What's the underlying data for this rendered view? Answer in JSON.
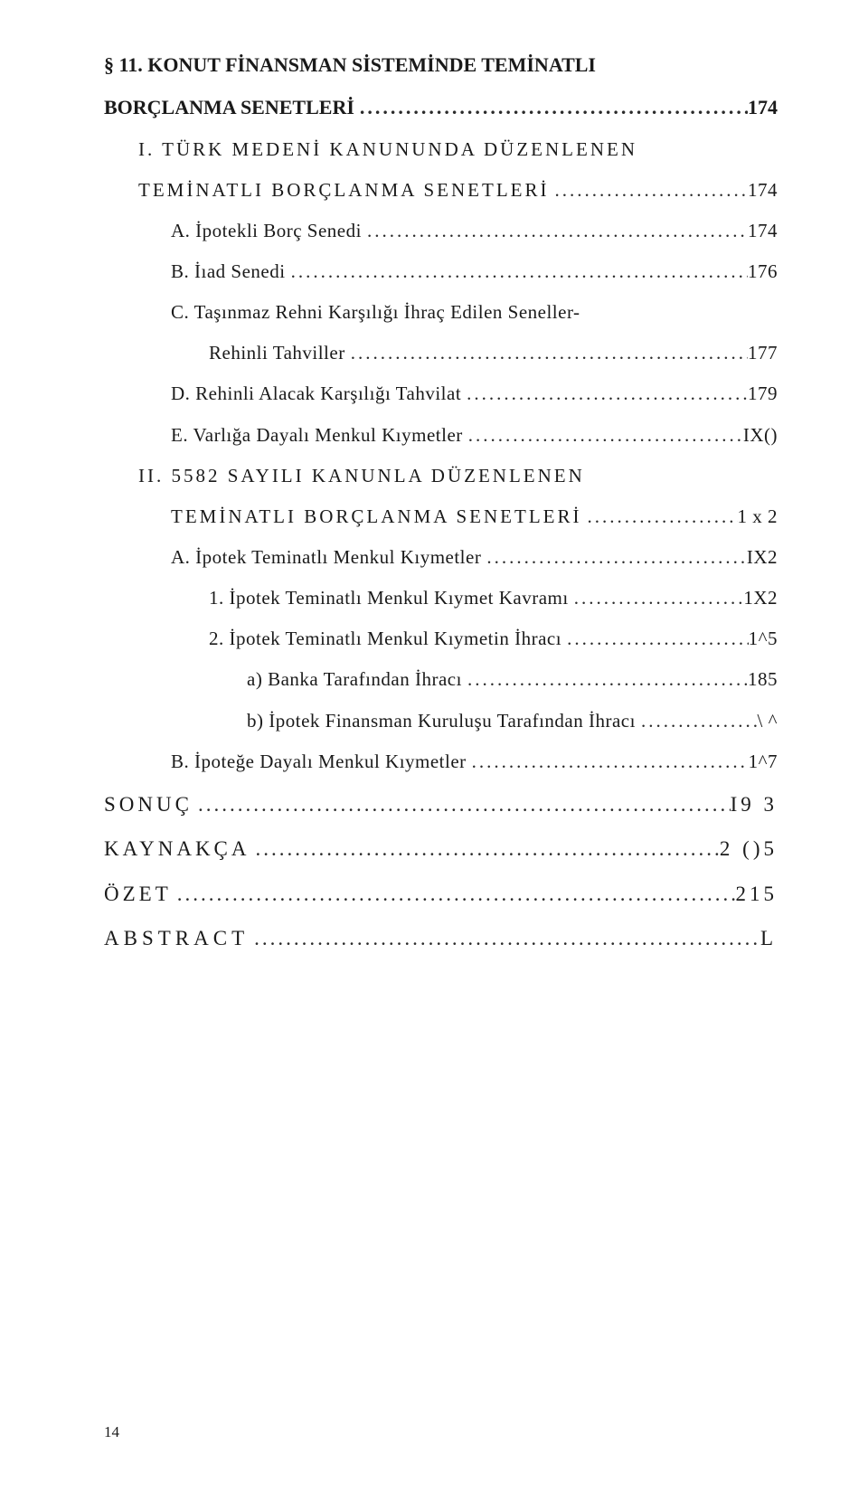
{
  "dots": "...........................................................................................................................",
  "entries": [
    {
      "cls": "row sec bold l0",
      "label": "§ 11. KONUT FİNANSMAN SİSTEMİNDE TEMİNATLI",
      "page": ""
    },
    {
      "cls": "row sec bold l0",
      "label": "BORÇLANMA SENETLERİ",
      "page": "174",
      "dots": true
    },
    {
      "cls": "row sub l1",
      "label": "I. TÜRK MEDENİ KANUNUNDA DÜZENLENEN",
      "page": "",
      "labelCls": "ls3"
    },
    {
      "cls": "row sub l2",
      "label": "TEMİNATLI BORÇLANMA SENETLERİ",
      "page": "174",
      "dots": true,
      "labelCls": "ls3"
    },
    {
      "cls": "row item l3",
      "label": "A. İpotekli Borç Senedi",
      "page": "174",
      "dots": true
    },
    {
      "cls": "row item l3",
      "label": "B. İıad Senedi",
      "page": "176",
      "dots": true
    },
    {
      "cls": "row item l3",
      "label": "C. Taşınmaz Rehni Karşılığı İhraç Edilen Seneller-",
      "page": ""
    },
    {
      "cls": "row item l4",
      "label": "Rehinli Tahviller",
      "page": "177",
      "dots": true
    },
    {
      "cls": "row item l3",
      "label": "D. Rehinli Alacak Karşılığı Tahvilat",
      "page": "179",
      "dots": true
    },
    {
      "cls": "row item l3",
      "label": "E. Varlığa Dayalı Menkul Kıymetler",
      "page": "IX()",
      "dots": true
    },
    {
      "cls": "row sub l1",
      "label": "II. 5582 SAYILI KANUNLA DÜZENLENEN",
      "page": "",
      "labelCls": "ls3"
    },
    {
      "cls": "row sub l2-cont",
      "label": "TEMİNATLI BORÇLANMA SENETLERİ",
      "page": "1 x 2",
      "dots": true,
      "labelCls": "ls3"
    },
    {
      "cls": "row item l3",
      "label": "A. İpotek Teminatlı Menkul Kıymetler",
      "page": "IX2",
      "dots": true
    },
    {
      "cls": "row item l4",
      "label": "1. İpotek Teminatlı Menkul Kıymet Kavramı",
      "page": "1X2",
      "dots": true
    },
    {
      "cls": "row item l4",
      "label": "2. İpotek Teminatlı Menkul Kıymetin İhracı",
      "page": "1^5",
      "dots": true
    },
    {
      "cls": "row item l5",
      "label": "a) Banka Tarafından İhracı",
      "page": "185",
      "dots": true
    },
    {
      "cls": "row item l5",
      "label": "b) İpotek Finansman Kuruluşu Tarafından İhracı",
      "page": "\\ ^",
      "dots": true
    },
    {
      "cls": "row item l3",
      "label": "B. İpoteğe Dayalı Menkul Kıymetler",
      "page": "1^7",
      "dots": true
    },
    {
      "cls": "row big l0",
      "label": "SONUÇ",
      "page": "I9 3",
      "dots": true
    },
    {
      "cls": "row big l0",
      "label": "KAYNAKÇA",
      "page": "2 ()5",
      "dots": true
    },
    {
      "cls": "row big l0",
      "label": "ÖZET",
      "page": "215",
      "dots": true
    },
    {
      "cls": "row end l0",
      "label": "ABSTRACT",
      "page": " L",
      "dots": true
    }
  ],
  "pageNumber": "14"
}
